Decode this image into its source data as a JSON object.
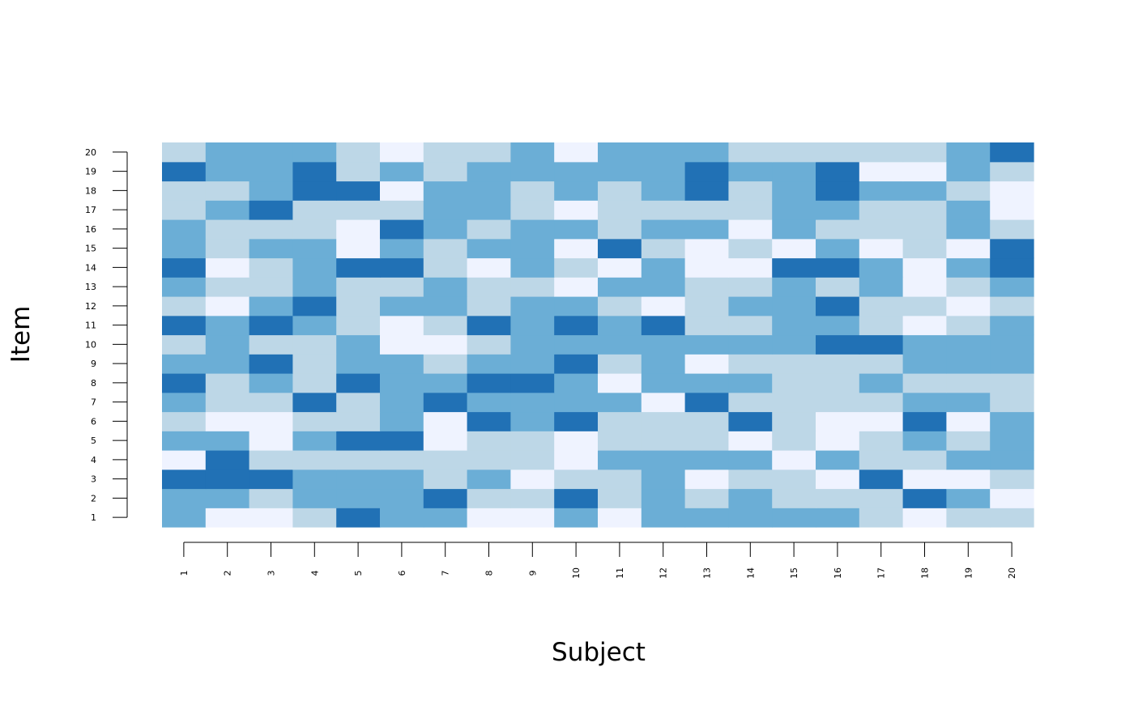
{
  "chart_data": {
    "type": "heatmap",
    "xlabel": "Subject",
    "ylabel": "Item",
    "x": [
      "1",
      "2",
      "3",
      "4",
      "5",
      "6",
      "7",
      "8",
      "9",
      "10",
      "11",
      "12",
      "13",
      "14",
      "15",
      "16",
      "17",
      "18",
      "19",
      "20"
    ],
    "y": [
      "1",
      "2",
      "3",
      "4",
      "5",
      "6",
      "7",
      "8",
      "9",
      "10",
      "11",
      "12",
      "13",
      "14",
      "15",
      "16",
      "17",
      "18",
      "19",
      "20"
    ],
    "color_levels": {
      "0": "#eff3ff",
      "1": "#bdd7e7",
      "2": "#6baed6",
      "3": "#2171b5"
    },
    "values": [
      [
        2,
        0,
        0,
        1,
        3,
        2,
        2,
        0,
        0,
        2,
        0,
        2,
        2,
        2,
        2,
        2,
        1,
        0,
        1,
        1
      ],
      [
        2,
        2,
        1,
        2,
        2,
        2,
        3,
        1,
        1,
        3,
        1,
        2,
        1,
        2,
        1,
        1,
        1,
        3,
        2,
        0
      ],
      [
        3,
        3,
        3,
        2,
        2,
        2,
        1,
        2,
        0,
        1,
        1,
        2,
        0,
        1,
        1,
        0,
        3,
        0,
        0,
        1
      ],
      [
        0,
        3,
        1,
        1,
        1,
        1,
        1,
        1,
        1,
        0,
        2,
        2,
        2,
        2,
        0,
        2,
        1,
        1,
        2,
        2
      ],
      [
        2,
        2,
        0,
        2,
        3,
        3,
        0,
        1,
        1,
        0,
        1,
        1,
        1,
        0,
        1,
        0,
        1,
        2,
        1,
        2
      ],
      [
        1,
        0,
        0,
        1,
        1,
        2,
        0,
        3,
        2,
        3,
        1,
        1,
        1,
        3,
        1,
        0,
        0,
        3,
        0,
        2
      ],
      [
        2,
        1,
        1,
        3,
        1,
        2,
        3,
        2,
        2,
        2,
        2,
        0,
        3,
        1,
        1,
        1,
        1,
        2,
        2,
        1
      ],
      [
        3,
        1,
        2,
        1,
        3,
        2,
        2,
        3,
        3,
        2,
        0,
        2,
        2,
        2,
        1,
        1,
        2,
        1,
        1,
        1
      ],
      [
        2,
        2,
        3,
        1,
        2,
        2,
        1,
        2,
        2,
        3,
        1,
        2,
        0,
        1,
        1,
        1,
        1,
        2,
        2,
        2
      ],
      [
        1,
        2,
        1,
        1,
        2,
        0,
        0,
        1,
        2,
        2,
        2,
        2,
        2,
        2,
        2,
        3,
        3,
        2,
        2,
        2
      ],
      [
        3,
        2,
        3,
        2,
        1,
        0,
        1,
        3,
        2,
        3,
        2,
        3,
        1,
        1,
        2,
        2,
        1,
        0,
        1,
        2
      ],
      [
        1,
        0,
        2,
        3,
        1,
        2,
        2,
        1,
        2,
        2,
        1,
        0,
        1,
        2,
        2,
        3,
        1,
        1,
        0,
        1
      ],
      [
        2,
        1,
        1,
        2,
        1,
        1,
        2,
        1,
        1,
        0,
        2,
        2,
        1,
        1,
        2,
        1,
        2,
        0,
        1,
        2
      ],
      [
        3,
        0,
        1,
        2,
        3,
        3,
        1,
        0,
        2,
        1,
        0,
        2,
        0,
        0,
        3,
        3,
        2,
        0,
        2,
        3
      ],
      [
        2,
        1,
        2,
        2,
        0,
        2,
        1,
        2,
        2,
        0,
        3,
        1,
        0,
        1,
        0,
        2,
        0,
        1,
        0,
        3
      ],
      [
        2,
        1,
        1,
        1,
        0,
        3,
        2,
        1,
        2,
        2,
        1,
        2,
        2,
        0,
        2,
        1,
        1,
        1,
        2,
        1
      ],
      [
        1,
        2,
        3,
        1,
        1,
        1,
        2,
        2,
        1,
        0,
        1,
        1,
        1,
        1,
        2,
        2,
        1,
        1,
        2,
        0
      ],
      [
        1,
        1,
        2,
        3,
        3,
        0,
        2,
        2,
        1,
        2,
        1,
        2,
        3,
        1,
        2,
        3,
        2,
        2,
        1,
        0
      ],
      [
        3,
        2,
        2,
        3,
        1,
        2,
        1,
        2,
        2,
        2,
        2,
        2,
        3,
        2,
        2,
        3,
        0,
        0,
        2,
        1
      ],
      [
        1,
        2,
        2,
        2,
        1,
        0,
        1,
        1,
        2,
        0,
        2,
        2,
        2,
        1,
        1,
        1,
        1,
        1,
        2,
        3
      ]
    ]
  }
}
